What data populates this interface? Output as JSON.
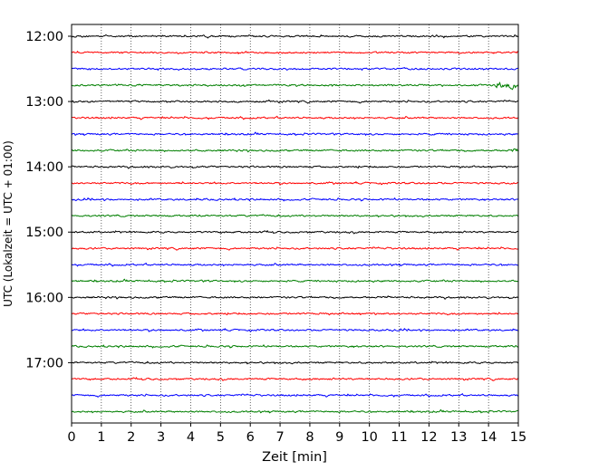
{
  "chart_data": {
    "type": "line",
    "title": "",
    "xlabel": "Zeit  [min]",
    "ylabel": "UTC (Lokalzeit = UTC + 01:00)",
    "xlim": [
      0,
      15
    ],
    "x_ticks": [
      0,
      1,
      2,
      3,
      4,
      5,
      6,
      7,
      8,
      9,
      10,
      11,
      12,
      13,
      14,
      15
    ],
    "y_ticks": [
      "12:00",
      "13:00",
      "14:00",
      "15:00",
      "16:00",
      "17:00"
    ],
    "grid": "vertical dotted at each minute",
    "legend": "none",
    "trace_start": "12:00",
    "trace_interval_minutes": 15,
    "trace_duration_minutes": 15,
    "color_cycle": [
      "#000000",
      "#ff0000",
      "#0000ff",
      "#007f00"
    ],
    "traces": [
      "12:00",
      "12:15",
      "12:30",
      "12:45",
      "13:00",
      "13:15",
      "13:30",
      "13:45",
      "14:00",
      "14:15",
      "14:30",
      "14:45",
      "15:00",
      "15:15",
      "15:30",
      "15:45",
      "16:00",
      "16:15",
      "16:30",
      "16:45",
      "17:00",
      "17:15",
      "17:30",
      "17:45"
    ],
    "events": [
      {
        "trace": "12:45",
        "minute_start": 14.2,
        "minute_end": 15.0,
        "amplitude": "high"
      },
      {
        "trace": "13:45",
        "minute_start": 14.8,
        "minute_end": 15.0,
        "amplitude": "medium"
      }
    ]
  }
}
